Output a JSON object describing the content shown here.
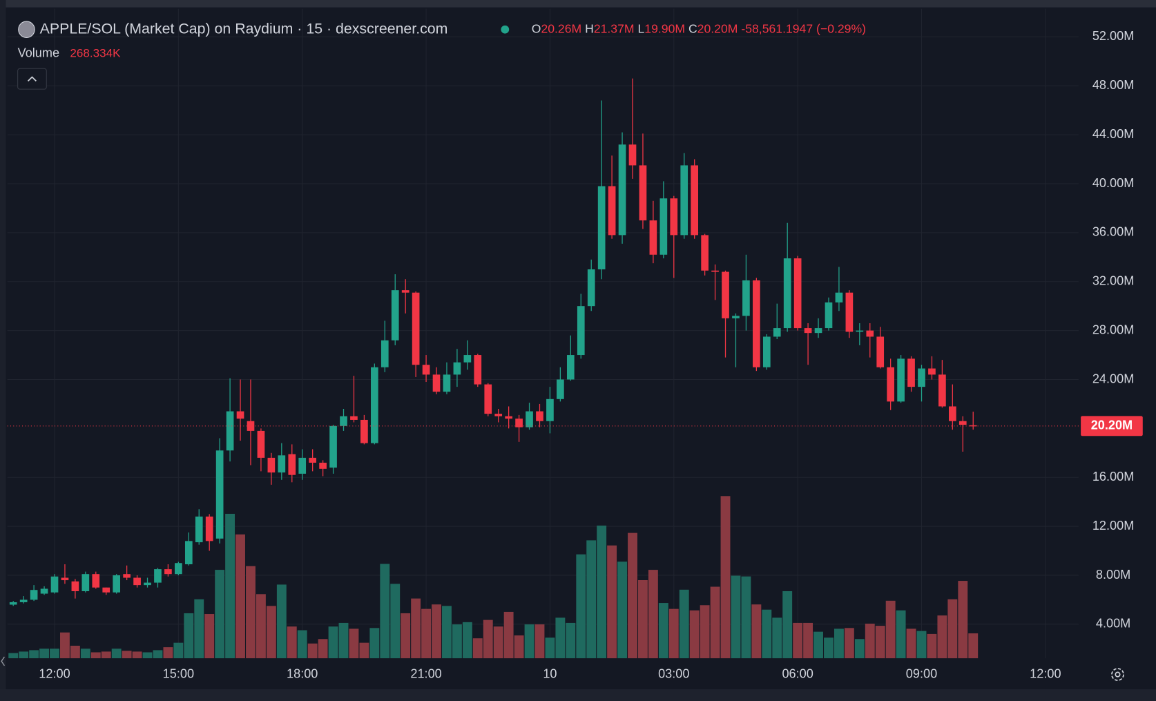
{
  "chart_data": {
    "type": "candlestick",
    "title": "APPLE/SOL (Market Cap) on Raydium · 15 · dexscreener.com",
    "ohlc_labels": {
      "open_key": "O",
      "open": "20.26M",
      "high_key": "H",
      "high": "21.37M",
      "low_key": "L",
      "low": "19.90M",
      "close_key": "C",
      "close": "20.20M",
      "change": "-58,561.1947 (−0.29%)"
    },
    "last_price_label": "20.20M",
    "up_color": "#22a38b",
    "down_color": "#f23645",
    "volume_up_color": "#1f6a5f",
    "volume_down_color": "#8a3a42",
    "grid": true,
    "categories": [
      null,
      null,
      null,
      null,
      "12:00",
      null,
      null,
      null,
      null,
      null,
      null,
      null,
      null,
      null,
      null,
      null,
      "15:00",
      null,
      null,
      null,
      null,
      null,
      null,
      null,
      null,
      null,
      null,
      null,
      "18:00",
      null,
      null,
      null,
      null,
      null,
      null,
      null,
      null,
      null,
      null,
      null,
      "21:00",
      null,
      null,
      null,
      null,
      null,
      null,
      null,
      null,
      null,
      null,
      null,
      "10",
      null,
      null,
      null,
      null,
      null,
      null,
      null,
      null,
      null,
      null,
      null,
      "03:00",
      null,
      null,
      null,
      null,
      null,
      null,
      null,
      null,
      null,
      null,
      null,
      "06:00",
      null,
      null,
      null,
      null,
      null,
      null,
      null,
      null,
      null,
      null,
      null,
      "09:00",
      null,
      null,
      null,
      null,
      null,
      null,
      null,
      null,
      null,
      null,
      null,
      "12:00"
    ],
    "open": [
      5.6,
      5.8,
      6.0,
      6.5,
      6.6,
      7.8,
      7.5,
      6.7,
      8.1,
      7.0,
      6.6,
      8.1,
      7.8,
      7.2,
      7.4,
      8.5,
      8.1,
      8.9,
      10.7,
      12.8,
      11.0,
      18.2,
      21.4,
      20.6,
      19.8,
      17.6,
      16.4,
      17.9,
      16.3,
      17.6,
      17.2,
      16.8,
      20.2,
      21.0,
      20.7,
      18.8,
      25.0,
      27.2,
      31.3,
      31.1,
      25.2,
      24.4,
      23.0,
      24.4,
      25.4,
      26.0,
      23.6,
      21.2,
      21.0,
      20.8,
      20.1,
      21.4,
      20.6,
      22.4,
      24.0,
      26.0,
      30.0,
      33.0,
      39.8,
      35.8,
      43.2,
      41.5,
      37.0,
      34.2,
      38.8,
      35.8,
      41.5,
      35.8,
      32.9,
      32.8,
      29.0,
      29.2,
      32.1,
      25.0,
      27.5,
      28.2,
      33.9,
      28.2,
      27.8,
      28.2,
      30.3,
      31.1,
      27.9,
      28.0,
      27.5,
      25.0,
      22.2,
      25.7,
      23.4,
      24.9,
      24.4,
      21.8,
      20.6,
      20.26,
      null,
      null,
      null,
      null,
      null,
      null,
      null
    ],
    "high": [
      5.9,
      6.3,
      7.2,
      7.1,
      8.1,
      8.9,
      7.7,
      8.3,
      8.3,
      7.0,
      8.1,
      8.8,
      8.0,
      7.8,
      8.6,
      8.9,
      9.1,
      11.5,
      13.4,
      13.0,
      19.2,
      24.1,
      24.0,
      24.0,
      20.0,
      18.0,
      18.8,
      18.7,
      18.3,
      18.3,
      17.4,
      20.3,
      21.6,
      24.3,
      21.1,
      25.3,
      28.8,
      32.6,
      32.2,
      31.2,
      26.0,
      25.0,
      25.4,
      26.5,
      27.2,
      26.1,
      23.7,
      21.6,
      21.8,
      21.1,
      22.1,
      22.0,
      23.4,
      25.0,
      27.6,
      31.0,
      33.8,
      46.8,
      42.3,
      44.2,
      48.6,
      44.1,
      38.6,
      40.2,
      39.0,
      42.5,
      42.0,
      35.9,
      33.4,
      32.9,
      29.4,
      34.2,
      32.3,
      27.7,
      30.2,
      36.8,
      34.1,
      28.6,
      29.0,
      30.7,
      33.2,
      31.3,
      28.6,
      28.6,
      28.3,
      25.7,
      26.0,
      25.9,
      25.2,
      25.9,
      25.6,
      23.6,
      21.0,
      21.37,
      null,
      null,
      null,
      null,
      null,
      null,
      null
    ],
    "low": [
      5.5,
      5.7,
      5.9,
      6.4,
      6.5,
      7.3,
      6.1,
      6.6,
      6.9,
      6.4,
      6.5,
      7.6,
      7.0,
      7.0,
      7.0,
      7.9,
      8.0,
      8.8,
      10.5,
      10.0,
      10.6,
      17.3,
      19.0,
      17.0,
      16.5,
      15.4,
      15.8,
      15.6,
      15.8,
      16.5,
      16.1,
      16.3,
      19.8,
      20.5,
      18.7,
      18.7,
      24.6,
      26.8,
      29.4,
      24.2,
      23.8,
      22.8,
      22.8,
      23.4,
      24.8,
      23.4,
      21.0,
      20.5,
      20.0,
      18.9,
      19.9,
      20.1,
      19.6,
      22.2,
      23.9,
      25.7,
      29.6,
      32.2,
      35.5,
      35.1,
      40.4,
      36.3,
      33.5,
      33.9,
      32.3,
      35.5,
      35.5,
      32.5,
      30.5,
      25.8,
      25.0,
      28.0,
      24.7,
      24.8,
      27.3,
      27.9,
      28.0,
      25.2,
      27.4,
      28.0,
      29.6,
      27.4,
      26.8,
      25.8,
      24.9,
      21.5,
      22.1,
      23.0,
      22.2,
      24.0,
      21.7,
      19.9,
      18.1,
      19.9,
      null,
      null,
      null,
      null,
      null,
      null,
      null
    ],
    "close": [
      5.8,
      6.0,
      6.8,
      6.9,
      7.9,
      7.6,
      6.7,
      8.1,
      7.0,
      6.6,
      8.0,
      7.8,
      7.2,
      7.4,
      8.5,
      8.1,
      9.0,
      10.8,
      12.8,
      10.8,
      18.2,
      21.4,
      20.8,
      19.8,
      17.6,
      16.4,
      17.8,
      16.2,
      17.6,
      17.2,
      16.7,
      20.2,
      21.0,
      20.7,
      18.8,
      25.0,
      27.2,
      31.3,
      31.1,
      25.2,
      24.4,
      23.0,
      24.4,
      25.4,
      26.0,
      23.6,
      21.2,
      21.0,
      20.8,
      20.1,
      21.4,
      20.6,
      22.4,
      24.0,
      26.0,
      30.0,
      33.0,
      39.8,
      35.8,
      43.2,
      41.5,
      37.0,
      34.2,
      38.8,
      35.8,
      41.5,
      35.8,
      32.9,
      32.8,
      29.0,
      29.2,
      32.1,
      25.0,
      27.5,
      28.2,
      33.9,
      28.2,
      27.8,
      28.2,
      30.3,
      31.1,
      27.9,
      28.0,
      27.5,
      25.0,
      22.2,
      25.7,
      23.4,
      24.9,
      24.4,
      21.8,
      20.6,
      20.3,
      20.2,
      null,
      null,
      null,
      null,
      null,
      null,
      null
    ],
    "volume": {
      "name": "Volume",
      "legend_value": "268.334K",
      "axis": "y2",
      "values": [
        56,
        72,
        87,
        103,
        103,
        278,
        135,
        103,
        64,
        72,
        103,
        80,
        72,
        64,
        87,
        119,
        167,
        485,
        636,
        477,
        953,
        1557,
        1335,
        993,
        691,
        564,
        794,
        342,
        302,
        159,
        207,
        342,
        381,
        318,
        167,
        326,
        1017,
        802,
        485,
        644,
        532,
        580,
        564,
        365,
        389,
        215,
        413,
        342,
        500,
        246,
        365,
        365,
        222,
        437,
        381,
        1120,
        1271,
        1430,
        1216,
        1041,
        1351,
        842,
        953,
        596,
        532,
        739,
        516,
        572,
        771,
        1748,
        890,
        882,
        580,
        524,
        437,
        723,
        381,
        381,
        286,
        222,
        318,
        326,
        207,
        373,
        350,
        620,
        516,
        318,
        294,
        262,
        461,
        636,
        834,
        268.334,
        null,
        null,
        null,
        null,
        null,
        null,
        null
      ]
    },
    "ylim": [
      1.22,
      54.29
    ],
    "y2lim": [
      0,
      7000
    ],
    "yticks": [
      {
        "value": 52,
        "label": "52.00M"
      },
      {
        "value": 48,
        "label": "48.00M"
      },
      {
        "value": 44,
        "label": "44.00M"
      },
      {
        "value": 40,
        "label": "40.00M"
      },
      {
        "value": 36,
        "label": "36.00M"
      },
      {
        "value": 32,
        "label": "32.00M"
      },
      {
        "value": 28,
        "label": "28.00M"
      },
      {
        "value": 24,
        "label": "24.00M"
      },
      {
        "value": 16,
        "label": "16.00M"
      },
      {
        "value": 12,
        "label": "12.00M"
      },
      {
        "value": 8,
        "label": "8.00M"
      },
      {
        "value": 4,
        "label": "4.00M"
      }
    ]
  }
}
